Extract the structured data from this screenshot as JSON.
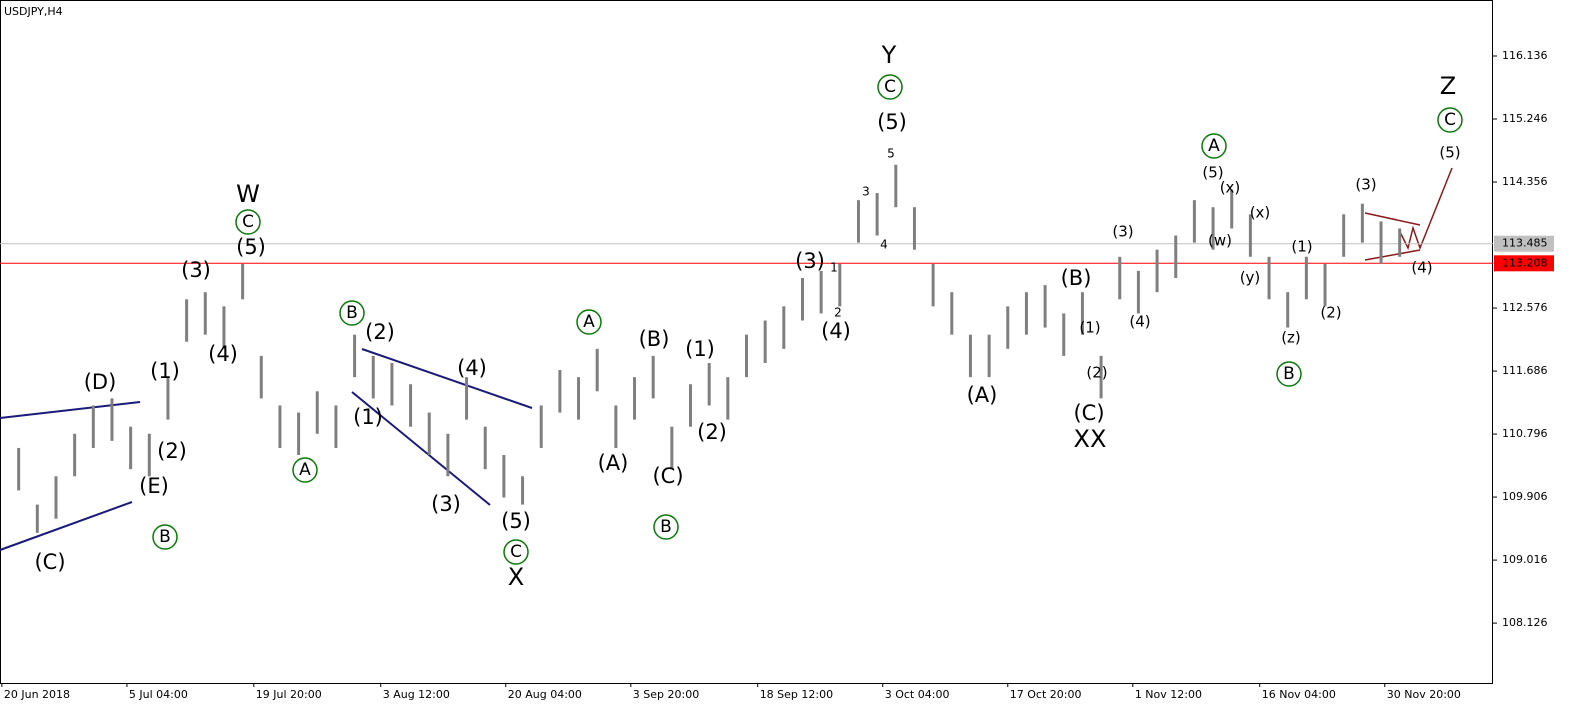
{
  "chart_data": {
    "type": "ohlc",
    "title": "USDJPY,H4",
    "x": [
      1,
      2,
      3,
      4,
      5,
      6,
      7,
      8,
      9,
      10,
      11,
      12,
      13,
      14,
      15,
      16,
      17,
      18,
      19,
      20,
      21,
      22,
      23,
      24,
      25,
      26,
      27,
      28,
      29,
      30,
      31,
      32,
      33,
      34,
      35,
      36,
      37,
      38,
      39,
      40,
      41,
      42,
      43,
      44,
      45,
      46,
      47,
      48,
      49,
      50,
      51,
      52,
      53,
      54,
      55,
      56,
      57,
      58,
      59,
      60,
      61,
      62,
      63,
      64,
      65,
      66,
      67,
      68,
      69,
      70,
      71,
      72,
      73,
      74,
      75
    ],
    "high": [
      110.6,
      109.8,
      110.2,
      110.8,
      111.2,
      111.3,
      110.9,
      110.8,
      111.6,
      112.7,
      112.8,
      112.6,
      113.2,
      111.9,
      111.2,
      111.1,
      111.4,
      111.2,
      112.2,
      111.9,
      111.8,
      111.5,
      111.1,
      110.8,
      111.6,
      110.9,
      110.5,
      110.2,
      111.2,
      111.7,
      111.6,
      112.0,
      111.2,
      111.6,
      111.9,
      110.9,
      111.5,
      111.8,
      111.6,
      112.2,
      112.4,
      112.6,
      113.0,
      113.1,
      113.2,
      114.1,
      114.2,
      114.6,
      114.0,
      113.2,
      112.8,
      112.2,
      112.2,
      112.6,
      112.8,
      112.9,
      112.5,
      112.8,
      111.9,
      113.3,
      113.1,
      113.4,
      113.6,
      114.1,
      114.0,
      114.25,
      113.9,
      113.3,
      112.8,
      113.3,
      113.2,
      113.9,
      114.05,
      113.8,
      113.7
    ],
    "low": [
      110.0,
      109.4,
      109.6,
      110.2,
      110.6,
      110.7,
      110.3,
      110.2,
      111.0,
      112.1,
      112.2,
      112.0,
      112.7,
      111.3,
      110.6,
      110.5,
      110.8,
      110.6,
      111.6,
      111.3,
      111.2,
      110.9,
      110.5,
      110.2,
      111.0,
      110.3,
      109.9,
      109.8,
      110.6,
      111.1,
      111.0,
      111.4,
      110.6,
      111.0,
      111.3,
      110.3,
      110.9,
      111.2,
      111.0,
      111.6,
      111.8,
      112.0,
      112.4,
      112.5,
      112.6,
      113.5,
      113.6,
      114.0,
      113.4,
      112.6,
      112.2,
      111.6,
      111.6,
      112.0,
      112.2,
      112.3,
      111.9,
      112.2,
      111.3,
      112.7,
      112.5,
      112.8,
      113.0,
      113.5,
      113.4,
      113.7,
      113.3,
      112.7,
      112.3,
      112.7,
      112.6,
      113.3,
      113.5,
      113.2,
      113.3
    ],
    "color": "#7f7f7f",
    "xlim": [
      0,
      80
    ],
    "xticks": [
      {
        "value": 0.1,
        "label": "20 Jun 2018"
      },
      {
        "value": 6.8,
        "label": "5 Jul 04:00"
      },
      {
        "value": 13.6,
        "label": "19 Jul 20:00"
      },
      {
        "value": 20.4,
        "label": "3 Aug 12:00"
      },
      {
        "value": 27.1,
        "label": "20 Aug 04:00"
      },
      {
        "value": 33.8,
        "label": "3 Sep 20:00"
      },
      {
        "value": 40.6,
        "label": "18 Sep 12:00"
      },
      {
        "value": 47.3,
        "label": "3 Oct 04:00"
      },
      {
        "value": 54,
        "label": "17 Oct 20:00"
      },
      {
        "value": 60.7,
        "label": "1 Nov 12:00"
      },
      {
        "value": 67.5,
        "label": "16 Nov 04:00"
      },
      {
        "value": 74.2,
        "label": "30 Nov 20:00"
      }
    ],
    "ylim": [
      107.28,
      116.927
    ],
    "yticks": [
      108.126,
      109.016,
      109.906,
      110.796,
      111.686,
      112.576,
      114.356,
      115.246,
      116.136
    ],
    "price_lines": [
      113.485,
      113.208
    ],
    "price_line_colors": [
      "#c0c0c0",
      "#ff0000"
    ],
    "annotations": [
      "(C)",
      "(D)",
      "(E)",
      "B",
      "(1)",
      "(2)",
      "(3)",
      "(4)",
      "(5)",
      "C",
      "W",
      "A",
      "B",
      "(2)",
      "(1)",
      "(4)",
      "(3)",
      "(5)",
      "C",
      "X",
      "A",
      "(B)",
      "(A)",
      "(C)",
      "B",
      "(1)",
      "(2)",
      "(3)",
      "(4)",
      "1",
      "2",
      "3",
      "4",
      "5",
      "(5)",
      "C",
      "Y",
      "(A)",
      "(B)",
      "(C)",
      "XX",
      "(1)",
      "(2)",
      "(3)",
      "(4)",
      "(5)",
      "A",
      "(x)",
      "(w)",
      "(x)",
      "(y)",
      "(z)",
      "B",
      "(1)",
      "(2)",
      "(3)",
      "(4)",
      "(5)",
      "C",
      "Z"
    ]
  }
}
